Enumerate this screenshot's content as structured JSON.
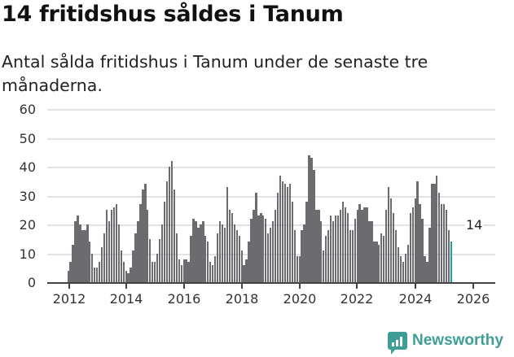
{
  "header": {
    "title": "14 fritidshus såldes i Tanum",
    "subtitle": "Antal sålda fritidshus i Tanum under de senaste tre månaderna."
  },
  "brand": {
    "name": "Newsworthy",
    "color": "#3e9e96"
  },
  "colors": {
    "bar": "#6c6b70",
    "highlight": "#1aa39a",
    "grid": "#e2e2e2"
  },
  "annotation": {
    "label": "14"
  },
  "chart_data": {
    "type": "bar",
    "title": "14 fritidshus såldes i Tanum",
    "subtitle": "Antal sålda fritidshus i Tanum under de senaste tre månaderna.",
    "xlabel": "",
    "ylabel": "",
    "ylim": [
      0,
      60
    ],
    "yticks": [
      0,
      10,
      20,
      30,
      40,
      50,
      60
    ],
    "xticks": [
      "2012",
      "2014",
      "2016",
      "2018",
      "2020",
      "2022",
      "2024",
      "2026"
    ],
    "grid": true,
    "legend": null,
    "start": "2011-12",
    "frequency": "monthly",
    "annotations": [
      {
        "x": "2026-01",
        "text": "14"
      }
    ],
    "values": [
      4,
      7,
      13,
      21,
      23,
      20,
      18,
      18,
      20,
      14,
      10,
      5,
      5,
      7,
      12,
      17,
      25,
      21,
      25,
      26,
      27,
      20,
      11,
      7,
      4,
      3,
      5,
      11,
      17,
      21,
      27,
      32,
      34,
      25,
      15,
      7,
      7,
      10,
      15,
      20,
      28,
      35,
      40,
      42,
      32,
      17,
      8,
      6,
      8,
      8,
      7,
      16,
      22,
      21,
      19,
      20,
      21,
      16,
      14,
      7,
      6,
      9,
      17,
      21,
      20,
      19,
      33,
      25,
      24,
      20,
      18,
      16,
      11,
      6,
      8,
      14,
      22,
      25,
      31,
      23,
      24,
      23,
      22,
      17,
      19,
      21,
      25,
      31,
      37,
      35,
      34,
      33,
      34,
      28,
      18,
      9,
      9,
      18,
      20,
      28,
      44,
      43,
      39,
      25,
      25,
      21,
      11,
      16,
      18,
      23,
      21,
      23,
      23,
      25,
      28,
      26,
      24,
      18,
      18,
      22,
      25,
      27,
      25,
      26,
      26,
      21,
      21,
      14,
      14,
      13,
      17,
      16,
      25,
      33,
      29,
      24,
      18,
      12,
      9,
      7,
      10,
      13,
      24,
      26,
      29,
      35,
      27,
      22,
      9,
      7,
      19,
      34,
      34,
      37,
      31,
      27,
      27,
      25,
      18,
      14
    ],
    "last_value": 14
  }
}
